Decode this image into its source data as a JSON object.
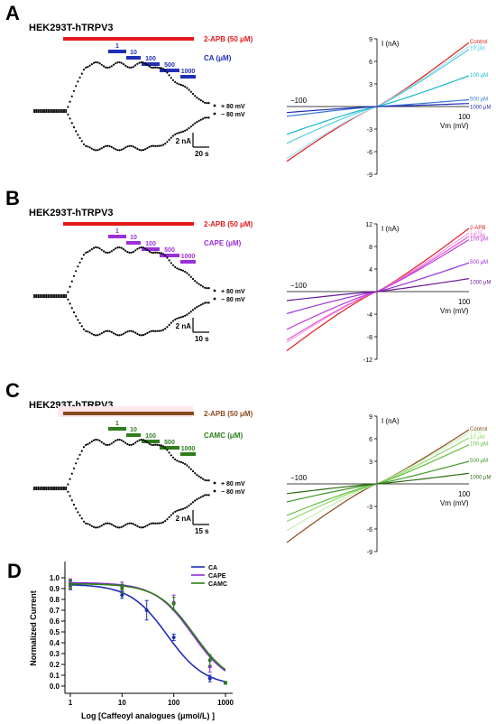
{
  "panels": [
    {
      "letter": "A",
      "cell": "HEK293T-hTRPV3",
      "agonist": {
        "label": "2-APB (50 μM)",
        "color": "#e31a1c"
      },
      "inhibitor": {
        "label": "CA (μM)",
        "color": "#1f2fb5",
        "concs": [
          "1",
          "10",
          "100",
          "500",
          "1000"
        ]
      },
      "voltages": [
        "+ 80 mV",
        "− 80 mV"
      ],
      "scale": {
        "current": "2 nA",
        "time": "20 s"
      },
      "iv": {
        "ylabel": "I (nA)",
        "xlabel": "Vm (mV)",
        "xticks": [
          "−100",
          "100"
        ],
        "yticks": [
          "9",
          "6",
          "3",
          "-3",
          "-6",
          "-9"
        ],
        "ymax": 9,
        "curves": [
          {
            "label": "Control",
            "color": "#e31a1c",
            "ypos": 8.5,
            "yneg": -7.3
          },
          {
            "label": "1 μM",
            "color": "#a6e4ef",
            "ypos": 8.0,
            "yneg": -6.9
          },
          {
            "label": "10 μM",
            "color": "#55cde0",
            "ypos": 7.6,
            "yneg": -4.9
          },
          {
            "label": "100 μM",
            "color": "#19b8cc",
            "ypos": 4.1,
            "yneg": -3.7
          },
          {
            "label": "500 μM",
            "color": "#3a78d6",
            "ypos": 0.9,
            "yneg": -1.3
          },
          {
            "label": "1000 μM",
            "color": "#1f2fb5",
            "ypos": 0.4,
            "yneg": -0.8
          }
        ]
      }
    },
    {
      "letter": "B",
      "cell": "HEK293T-hTRPV3",
      "agonist": {
        "label": "2-APB (50 μM)",
        "color": "#e31a1c"
      },
      "inhibitor": {
        "label": "CAPE (μM)",
        "color": "#9b30d9",
        "concs": [
          "1",
          "10",
          "100",
          "500",
          "1000"
        ]
      },
      "voltages": [
        "+ 80 mV",
        "− 80 mV"
      ],
      "scale": {
        "current": "2 nA",
        "time": "10 s"
      },
      "iv": {
        "ylabel": "I (nA)",
        "xlabel": "Vm (mV)",
        "xticks": [
          "−100",
          "100"
        ],
        "yticks": [
          "12",
          "8",
          "4",
          "-4",
          "-8",
          "-12"
        ],
        "ymax": 12,
        "curves": [
          {
            "label": "2-APB",
            "color": "#e31a1c",
            "ypos": 11.2,
            "yneg": -10.5
          },
          {
            "label": "1 μM",
            "color": "#f5a3e6",
            "ypos": 10.4,
            "yneg": -9.0
          },
          {
            "label": "10 μM",
            "color": "#e457d6",
            "ypos": 9.8,
            "yneg": -8.6
          },
          {
            "label": "100 μM",
            "color": "#c23ad8",
            "ypos": 9.2,
            "yneg": -6.7
          },
          {
            "label": "500 μM",
            "color": "#9b30d9",
            "ypos": 5.1,
            "yneg": -3.9
          },
          {
            "label": "1000 μM",
            "color": "#6a1a9a",
            "ypos": 2.3,
            "yneg": -1.6
          }
        ]
      }
    },
    {
      "letter": "C",
      "cell": "HEK293T-hTRPV3",
      "agonist": {
        "label": "2-APB (50 μM)",
        "color": "#8b4a1e"
      },
      "inhibitor": {
        "label": "CAMC (μM)",
        "color": "#2e7d1a",
        "concs": [
          "1",
          "10",
          "100",
          "500",
          "1000"
        ]
      },
      "voltages": [
        "+ 80 mV",
        "− 80 mV"
      ],
      "scale": {
        "current": "2 nA",
        "time": "15 s"
      },
      "iv": {
        "ylabel": "I (nA)",
        "xlabel": "Vm (mV)",
        "xticks": [
          "−100",
          "100"
        ],
        "yticks": [
          "9",
          "6",
          "3",
          "-3",
          "-6",
          "-9"
        ],
        "ymax": 9,
        "curves": [
          {
            "label": "Control",
            "color": "#8b4a1e",
            "ypos": 7.2,
            "yneg": -7.8
          },
          {
            "label": "1 μM",
            "color": "#c8efb4",
            "ypos": 6.8,
            "yneg": -6.2
          },
          {
            "label": "10 μM",
            "color": "#8fda6b",
            "ypos": 6.1,
            "yneg": -5.0
          },
          {
            "label": "100 μM",
            "color": "#5fbf3a",
            "ypos": 5.2,
            "yneg": -4.2
          },
          {
            "label": "500 μM",
            "color": "#3f9a25",
            "ypos": 3.0,
            "yneg": -2.4
          },
          {
            "label": "1000 μM",
            "color": "#2e6b14",
            "ypos": 1.4,
            "yneg": -1.3
          }
        ]
      }
    }
  ],
  "chart_data": {
    "type": "scatter",
    "panel": "D",
    "xlabel": "Log [Caffeoyl analogues (μmol/L) ]",
    "ylabel": "Normalized Current",
    "xscale": "log",
    "xlim": [
      1,
      1000
    ],
    "ylim": [
      0.0,
      1.0
    ],
    "xticks": [
      "1",
      "10",
      "100",
      "1000"
    ],
    "yticks": [
      "0.0",
      "0.1",
      "0.2",
      "0.3",
      "0.4",
      "0.5",
      "0.6",
      "0.7",
      "0.8",
      "0.9",
      "1.0"
    ],
    "legend_position": "top-right",
    "series": [
      {
        "name": "CA",
        "color": "#1f2fb5",
        "x": [
          1,
          10,
          30,
          100,
          500,
          1000
        ],
        "y": [
          0.93,
          0.84,
          0.7,
          0.45,
          0.07,
          0.03
        ],
        "err": [
          0.04,
          0.03,
          0.09,
          0.03,
          0.03,
          0.01
        ],
        "ic50": 75,
        "top": 0.94
      },
      {
        "name": "CAPE",
        "color": "#8b2fd6",
        "x": [
          1,
          10,
          100,
          500,
          1000
        ],
        "y": [
          0.95,
          0.92,
          0.77,
          0.18,
          0.03
        ],
        "err": [
          0.04,
          0.04,
          0.07,
          0.05,
          0.01
        ],
        "ic50": 230,
        "top": 0.955
      },
      {
        "name": "CAMC",
        "color": "#2e7d1a",
        "x": [
          1,
          10,
          100,
          500,
          1000
        ],
        "y": [
          0.94,
          0.9,
          0.76,
          0.24,
          0.03
        ],
        "err": [
          0.04,
          0.04,
          0.06,
          0.05,
          0.01
        ],
        "ic50": 250,
        "top": 0.945
      }
    ]
  }
}
